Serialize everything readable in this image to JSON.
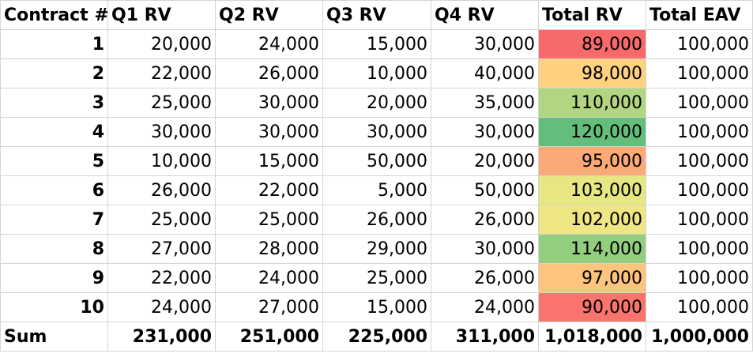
{
  "table": {
    "headers": [
      "Contract #",
      "Q1 RV",
      "Q2 RV",
      "Q3 RV",
      "Q4 RV",
      "Total RV",
      "Total EAV"
    ],
    "rows": [
      {
        "contract": "1",
        "q1": "20,000",
        "q2": "24,000",
        "q3": "15,000",
        "q4": "30,000",
        "total_rv": "89,000",
        "total_rv_color": "#f8696b",
        "total_eav": "100,000"
      },
      {
        "contract": "2",
        "q1": "22,000",
        "q2": "26,000",
        "q3": "10,000",
        "q4": "40,000",
        "total_rv": "98,000",
        "total_rv_color": "#fdd17f",
        "total_eav": "100,000"
      },
      {
        "contract": "3",
        "q1": "25,000",
        "q2": "30,000",
        "q3": "20,000",
        "q4": "35,000",
        "total_rv": "110,000",
        "total_rv_color": "#b1d580",
        "total_eav": "100,000"
      },
      {
        "contract": "4",
        "q1": "30,000",
        "q2": "30,000",
        "q3": "30,000",
        "q4": "30,000",
        "total_rv": "120,000",
        "total_rv_color": "#63be7b",
        "total_eav": "100,000"
      },
      {
        "contract": "5",
        "q1": "10,000",
        "q2": "15,000",
        "q3": "50,000",
        "q4": "20,000",
        "total_rv": "95,000",
        "total_rv_color": "#fbaa77",
        "total_eav": "100,000"
      },
      {
        "contract": "6",
        "q1": "26,000",
        "q2": "22,000",
        "q3": "5,000",
        "q4": "50,000",
        "total_rv": "103,000",
        "total_rv_color": "#e6e683",
        "total_eav": "100,000"
      },
      {
        "contract": "7",
        "q1": "25,000",
        "q2": "25,000",
        "q3": "26,000",
        "q4": "26,000",
        "total_rv": "102,000",
        "total_rv_color": "#eee683",
        "total_eav": "100,000"
      },
      {
        "contract": "8",
        "q1": "27,000",
        "q2": "28,000",
        "q3": "29,000",
        "q4": "30,000",
        "total_rv": "114,000",
        "total_rv_color": "#93cd7e",
        "total_eav": "100,000"
      },
      {
        "contract": "9",
        "q1": "22,000",
        "q2": "24,000",
        "q3": "25,000",
        "q4": "26,000",
        "total_rv": "97,000",
        "total_rv_color": "#fdc47d",
        "total_eav": "100,000"
      },
      {
        "contract": "10",
        "q1": "24,000",
        "q2": "27,000",
        "q3": "15,000",
        "q4": "24,000",
        "total_rv": "90,000",
        "total_rv_color": "#f8746d",
        "total_eav": "100,000"
      }
    ],
    "sum": {
      "label": "Sum",
      "q1": "231,000",
      "q2": "251,000",
      "q3": "225,000",
      "q4": "311,000",
      "total_rv": "1,018,000",
      "total_eav": "1,000,000"
    }
  }
}
